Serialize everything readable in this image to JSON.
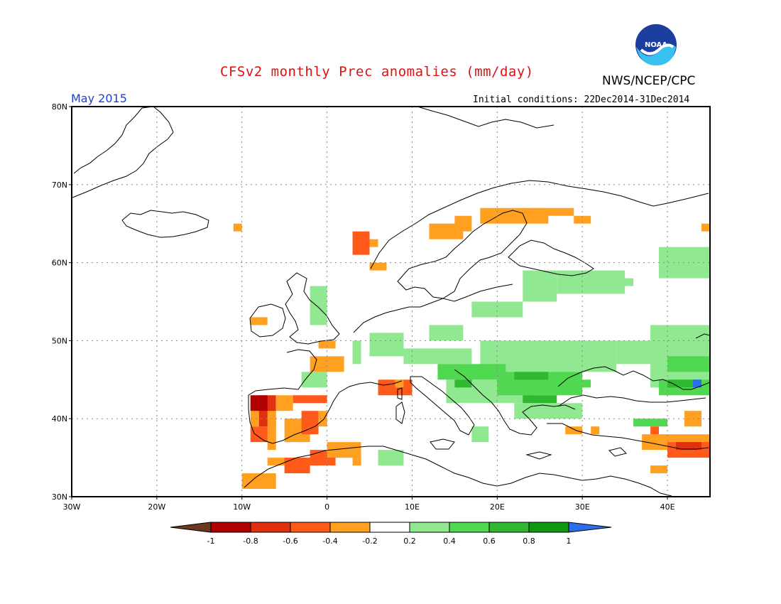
{
  "header": {
    "title": "CFSv2 monthly Prec anomalies (mm/day)",
    "agency": "NWS/NCEP/CPC",
    "logo_text": "NOAA",
    "month": "May 2015",
    "initial_conditions": "Initial conditions: 22Dec2014-31Dec2014"
  },
  "axes": {
    "lat_labels": [
      "80N",
      "70N",
      "60N",
      "50N",
      "40N",
      "30N"
    ],
    "lat_values": [
      80,
      70,
      60,
      50,
      40,
      30
    ],
    "lon_labels": [
      "30W",
      "20W",
      "10W",
      "0",
      "10E",
      "20E",
      "30E",
      "40E"
    ],
    "lon_values": [
      -30,
      -20,
      -10,
      0,
      10,
      20,
      30,
      40
    ],
    "lon_range": [
      -30,
      45
    ],
    "lat_range": [
      30,
      80
    ]
  },
  "colorbar": {
    "tick_labels": [
      "-1",
      "-0.8",
      "-0.6",
      "-0.4",
      "-0.2",
      "0.2",
      "0.4",
      "0.6",
      "0.8",
      "1"
    ],
    "colors": [
      "#6b3a1e",
      "#b00000",
      "#e03010",
      "#ff5a1a",
      "#ffa020",
      "#ffffff",
      "#90e890",
      "#50d850",
      "#30b830",
      "#109810",
      "#2a6ee8"
    ]
  },
  "colors": {
    "title": "#e01010",
    "month": "#1a3fd8",
    "coast": "#000000",
    "grid": "#888888"
  },
  "anomaly_cells": [
    {
      "lon": -11,
      "lat": 64,
      "w": 1,
      "h": 1,
      "v": -0.3
    },
    {
      "lon": 3,
      "lat": 61,
      "w": 2,
      "h": 3,
      "v": -0.5
    },
    {
      "lon": 5,
      "lat": 62,
      "w": 1,
      "h": 1,
      "v": -0.3
    },
    {
      "lon": 5,
      "lat": 59,
      "w": 2,
      "h": 1,
      "v": -0.3
    },
    {
      "lon": 12,
      "lat": 63,
      "w": 4,
      "h": 2,
      "v": -0.3
    },
    {
      "lon": 15,
      "lat": 64,
      "w": 2,
      "h": 2,
      "v": -0.3
    },
    {
      "lon": 18,
      "lat": 65,
      "w": 8,
      "h": 2,
      "v": -0.3
    },
    {
      "lon": 23,
      "lat": 66,
      "w": 6,
      "h": 1,
      "v": -0.3
    },
    {
      "lon": 29,
      "lat": 65,
      "w": 2,
      "h": 1,
      "v": -0.3
    },
    {
      "lon": 44,
      "lat": 64,
      "w": 1,
      "h": 1,
      "v": -0.3
    },
    {
      "lon": -9,
      "lat": 52,
      "w": 2,
      "h": 1,
      "v": -0.3
    },
    {
      "lon": -1,
      "lat": 49,
      "w": 2,
      "h": 1,
      "v": -0.3
    },
    {
      "lon": -2,
      "lat": 46,
      "w": 4,
      "h": 2,
      "v": -0.3
    },
    {
      "lon": 6,
      "lat": 43,
      "w": 4,
      "h": 2,
      "v": -0.5
    },
    {
      "lon": 8,
      "lat": 44,
      "w": 1,
      "h": 1,
      "v": -0.3
    },
    {
      "lon": -9,
      "lat": 37,
      "w": 3,
      "h": 2,
      "v": -0.4
    },
    {
      "lon": -9,
      "lat": 39,
      "w": 1,
      "h": 3,
      "v": -0.3
    },
    {
      "lon": -8,
      "lat": 39,
      "w": 2,
      "h": 4,
      "v": -0.7
    },
    {
      "lon": -9,
      "lat": 41,
      "w": 2,
      "h": 2,
      "v": -0.9
    },
    {
      "lon": -6,
      "lat": 41,
      "w": 2,
      "h": 2,
      "v": -0.3
    },
    {
      "lon": -4,
      "lat": 42,
      "w": 4,
      "h": 1,
      "v": -0.5
    },
    {
      "lon": -7,
      "lat": 36,
      "w": 1,
      "h": 5,
      "v": -0.3
    },
    {
      "lon": -5,
      "lat": 37,
      "w": 3,
      "h": 3,
      "v": -0.3
    },
    {
      "lon": -3,
      "lat": 38,
      "w": 2,
      "h": 3,
      "v": -0.5
    },
    {
      "lon": -1,
      "lat": 39,
      "w": 1,
      "h": 2,
      "v": -0.3
    },
    {
      "lon": -7,
      "lat": 34,
      "w": 6,
      "h": 1,
      "v": -0.3
    },
    {
      "lon": -5,
      "lat": 33,
      "w": 3,
      "h": 2,
      "v": -0.5
    },
    {
      "lon": -2,
      "lat": 34,
      "w": 3,
      "h": 2,
      "v": -0.5
    },
    {
      "lon": 0,
      "lat": 35,
      "w": 4,
      "h": 2,
      "v": -0.3
    },
    {
      "lon": -10,
      "lat": 31,
      "w": 4,
      "h": 2,
      "v": -0.3
    },
    {
      "lon": 3,
      "lat": 34,
      "w": 1,
      "h": 1,
      "v": -0.3
    },
    {
      "lon": 38,
      "lat": 33,
      "w": 2,
      "h": 1,
      "v": -0.3
    },
    {
      "lon": 37,
      "lat": 36,
      "w": 8,
      "h": 2,
      "v": -0.3
    },
    {
      "lon": 40,
      "lat": 35,
      "w": 5,
      "h": 2,
      "v": -0.5
    },
    {
      "lon": 41,
      "lat": 36,
      "w": 3,
      "h": 1,
      "v": -0.7
    },
    {
      "lon": 38,
      "lat": 38,
      "w": 1,
      "h": 1,
      "v": -0.5
    },
    {
      "lon": 42,
      "lat": 39,
      "w": 2,
      "h": 2,
      "v": -0.3
    },
    {
      "lon": 28,
      "lat": 38,
      "w": 2,
      "h": 1,
      "v": -0.3
    },
    {
      "lon": 31,
      "lat": 38,
      "w": 1,
      "h": 1,
      "v": -0.3
    },
    {
      "lon": -2,
      "lat": 52,
      "w": 2,
      "h": 5,
      "v": 0.3
    },
    {
      "lon": -3,
      "lat": 44,
      "w": 3,
      "h": 2,
      "v": 0.3
    },
    {
      "lon": 3,
      "lat": 47,
      "w": 1,
      "h": 3,
      "v": 0.3
    },
    {
      "lon": 5,
      "lat": 48,
      "w": 4,
      "h": 3,
      "v": 0.3
    },
    {
      "lon": 9,
      "lat": 47,
      "w": 8,
      "h": 2,
      "v": 0.3
    },
    {
      "lon": 12,
      "lat": 50,
      "w": 4,
      "h": 2,
      "v": 0.3
    },
    {
      "lon": 17,
      "lat": 53,
      "w": 6,
      "h": 2,
      "v": 0.3
    },
    {
      "lon": 23,
      "lat": 55,
      "w": 4,
      "h": 4,
      "v": 0.3
    },
    {
      "lon": 27,
      "lat": 56,
      "w": 8,
      "h": 3,
      "v": 0.3
    },
    {
      "lon": 33,
      "lat": 57,
      "w": 3,
      "h": 1,
      "v": 0.3
    },
    {
      "lon": 39,
      "lat": 58,
      "w": 6,
      "h": 4,
      "v": 0.3
    },
    {
      "lon": 38,
      "lat": 44,
      "w": 7,
      "h": 8,
      "v": 0.3
    },
    {
      "lon": 34,
      "lat": 47,
      "w": 4,
      "h": 3,
      "v": 0.3
    },
    {
      "lon": 18,
      "lat": 46,
      "w": 16,
      "h": 4,
      "v": 0.3
    },
    {
      "lon": 14,
      "lat": 42,
      "w": 10,
      "h": 3,
      "v": 0.3
    },
    {
      "lon": 22,
      "lat": 40,
      "w": 8,
      "h": 2,
      "v": 0.3
    },
    {
      "lon": 6,
      "lat": 34,
      "w": 3,
      "h": 2,
      "v": 0.3
    },
    {
      "lon": 17,
      "lat": 37,
      "w": 2,
      "h": 2,
      "v": 0.3
    },
    {
      "lon": 13,
      "lat": 45,
      "w": 8,
      "h": 2,
      "v": 0.5
    },
    {
      "lon": 20,
      "lat": 43,
      "w": 10,
      "h": 3,
      "v": 0.5
    },
    {
      "lon": 25,
      "lat": 44,
      "w": 6,
      "h": 1,
      "v": 0.5
    },
    {
      "lon": 40,
      "lat": 46,
      "w": 5,
      "h": 2,
      "v": 0.5
    },
    {
      "lon": 39,
      "lat": 43,
      "w": 6,
      "h": 2,
      "v": 0.5
    },
    {
      "lon": 36,
      "lat": 39,
      "w": 4,
      "h": 1,
      "v": 0.5
    },
    {
      "lon": 22,
      "lat": 45,
      "w": 4,
      "h": 1,
      "v": 0.7
    },
    {
      "lon": 23,
      "lat": 42,
      "w": 4,
      "h": 1,
      "v": 0.7
    },
    {
      "lon": 15,
      "lat": 44,
      "w": 2,
      "h": 1,
      "v": 0.7
    },
    {
      "lon": 40,
      "lat": 44,
      "w": 4,
      "h": 1,
      "v": 0.7
    },
    {
      "lon": 43,
      "lat": 44,
      "w": 1,
      "h": 1,
      "v": 1.1
    }
  ],
  "coastlines": [
    "0,60,40,55,55,60,70,75,88,90,105,110,125,130,138,150,155,170,175,185,195,200,205,215,225,230,245,250,255,265,275,280,290,295,300,310,320",
    ""
  ]
}
